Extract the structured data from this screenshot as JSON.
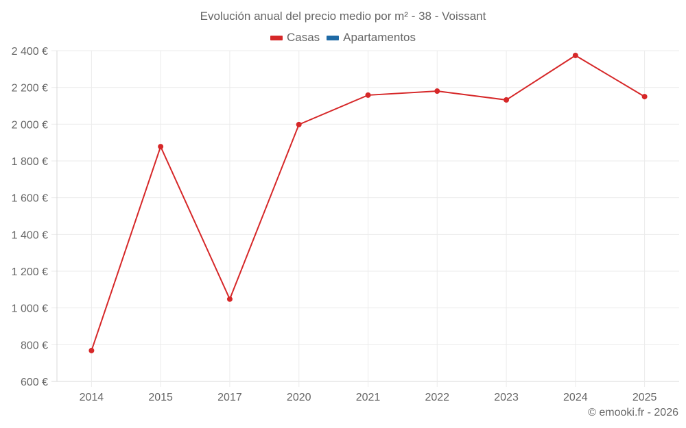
{
  "title": "Evolución anual del precio medio por m² - 38 - Voissant",
  "legend": [
    {
      "label": "Casas",
      "color": "#d62728"
    },
    {
      "label": "Apartamentos",
      "color": "#1f6aa5"
    }
  ],
  "credit": "© emooki.fr - 2026",
  "colors": {
    "line": "#d62728",
    "grid": "#ebebeb",
    "axis": "#d9d9d9",
    "text": "#666666"
  },
  "chart_data": {
    "type": "line",
    "title": "Evolución anual del precio medio por m² - 38 - Voissant",
    "xlabel": "",
    "ylabel": "",
    "categories": [
      "2014",
      "2015",
      "2017",
      "2020",
      "2021",
      "2022",
      "2023",
      "2024",
      "2025"
    ],
    "series": [
      {
        "name": "Casas",
        "color": "#d62728",
        "values": [
          768,
          1878,
          1048,
          1998,
          2158,
          2180,
          2132,
          2374,
          2150
        ]
      },
      {
        "name": "Apartamentos",
        "color": "#1f6aa5",
        "values": []
      }
    ],
    "ylim": [
      600,
      2400
    ],
    "yticks": [
      600,
      800,
      1000,
      1200,
      1400,
      1600,
      1800,
      2000,
      2200,
      2400
    ],
    "ytick_labels": [
      "600 €",
      "800 €",
      "1 000 €",
      "1 200 €",
      "1 400 €",
      "1 600 €",
      "1 800 €",
      "2 000 €",
      "2 200 €",
      "2 400 €"
    ],
    "grid": true,
    "legend_position": "top"
  }
}
